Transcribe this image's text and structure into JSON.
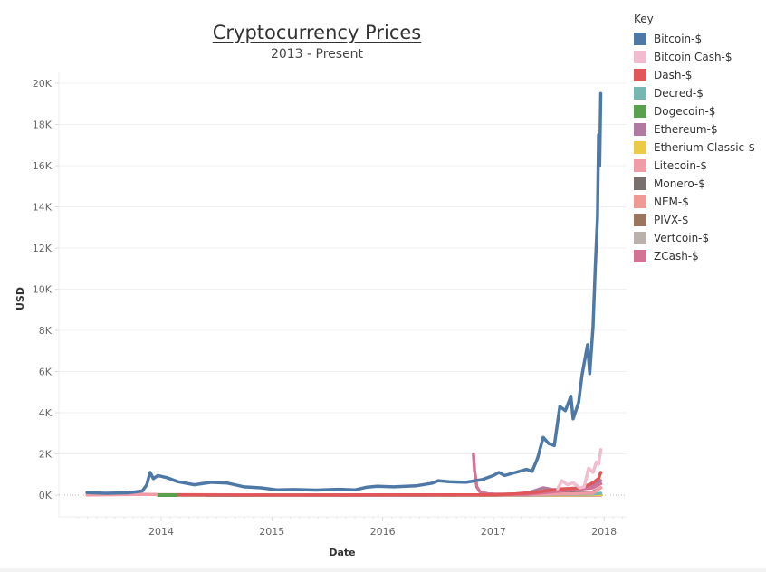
{
  "header": {
    "title": "Cryptocurrency Prices",
    "subtitle": "2013 - Present"
  },
  "legend": {
    "title": "Key",
    "items": [
      {
        "label": "Bitcoin-$",
        "color": "#4e79a7"
      },
      {
        "label": "Bitcoin Cash-$",
        "color": "#f1bbd0"
      },
      {
        "label": "Dash-$",
        "color": "#e15759"
      },
      {
        "label": "Decred-$",
        "color": "#76b7b2"
      },
      {
        "label": "Dogecoin-$",
        "color": "#59a14f"
      },
      {
        "label": "Ethereum-$",
        "color": "#b07aa1"
      },
      {
        "label": "Etherium Classic-$",
        "color": "#edc948"
      },
      {
        "label": "Litecoin-$",
        "color": "#f19ba7"
      },
      {
        "label": "Monero-$",
        "color": "#79706e"
      },
      {
        "label": "NEM-$",
        "color": "#f09a96"
      },
      {
        "label": "PIVX-$",
        "color": "#9c755f"
      },
      {
        "label": "Vertcoin-$",
        "color": "#bab0ac"
      },
      {
        "label": "ZCash-$",
        "color": "#d37295"
      }
    ]
  },
  "chart_data": {
    "type": "line",
    "title": "Cryptocurrency Prices",
    "subtitle": "2013 - Present",
    "xlabel": "Date",
    "ylabel": "USD",
    "x_ticks": [
      "2014",
      "2015",
      "2016",
      "2017",
      "2018"
    ],
    "x_tick_values": [
      2014,
      2015,
      2016,
      2017,
      2018
    ],
    "xlim": [
      2013.1,
      2018.2
    ],
    "y_ticks": [
      "0K",
      "2K",
      "4K",
      "6K",
      "8K",
      "10K",
      "12K",
      "14K",
      "16K",
      "18K",
      "20K"
    ],
    "y_tick_values": [
      0,
      2000,
      4000,
      6000,
      8000,
      10000,
      12000,
      14000,
      16000,
      18000,
      20000
    ],
    "ylim": [
      -1000,
      21000
    ],
    "grid": true,
    "legend_position": "right",
    "series": [
      {
        "name": "Bitcoin-$",
        "color": "#4e79a7",
        "points": [
          [
            2013.33,
            120
          ],
          [
            2013.5,
            90
          ],
          [
            2013.7,
            110
          ],
          [
            2013.83,
            200
          ],
          [
            2013.87,
            500
          ],
          [
            2013.9,
            1100
          ],
          [
            2013.93,
            800
          ],
          [
            2013.97,
            950
          ],
          [
            2014.05,
            850
          ],
          [
            2014.15,
            650
          ],
          [
            2014.3,
            500
          ],
          [
            2014.45,
            620
          ],
          [
            2014.6,
            580
          ],
          [
            2014.75,
            400
          ],
          [
            2014.9,
            350
          ],
          [
            2015.05,
            250
          ],
          [
            2015.2,
            270
          ],
          [
            2015.4,
            240
          ],
          [
            2015.6,
            280
          ],
          [
            2015.75,
            250
          ],
          [
            2015.85,
            380
          ],
          [
            2015.95,
            430
          ],
          [
            2016.1,
            400
          ],
          [
            2016.3,
            450
          ],
          [
            2016.45,
            580
          ],
          [
            2016.5,
            700
          ],
          [
            2016.6,
            650
          ],
          [
            2016.75,
            620
          ],
          [
            2016.9,
            750
          ],
          [
            2017.0,
            950
          ],
          [
            2017.05,
            1100
          ],
          [
            2017.1,
            950
          ],
          [
            2017.2,
            1100
          ],
          [
            2017.3,
            1250
          ],
          [
            2017.35,
            1150
          ],
          [
            2017.4,
            1800
          ],
          [
            2017.45,
            2800
          ],
          [
            2017.5,
            2500
          ],
          [
            2017.55,
            2400
          ],
          [
            2017.6,
            4300
          ],
          [
            2017.65,
            4100
          ],
          [
            2017.7,
            4800
          ],
          [
            2017.72,
            3700
          ],
          [
            2017.77,
            4500
          ],
          [
            2017.8,
            5800
          ],
          [
            2017.85,
            7300
          ],
          [
            2017.87,
            5900
          ],
          [
            2017.9,
            8200
          ],
          [
            2017.92,
            11000
          ],
          [
            2017.94,
            13500
          ],
          [
            2017.95,
            17500
          ],
          [
            2017.96,
            16000
          ],
          [
            2017.97,
            19500
          ]
        ]
      },
      {
        "name": "Bitcoin Cash-$",
        "color": "#f1bbd0",
        "points": [
          [
            2017.58,
            300
          ],
          [
            2017.62,
            700
          ],
          [
            2017.67,
            500
          ],
          [
            2017.72,
            600
          ],
          [
            2017.78,
            350
          ],
          [
            2017.82,
            400
          ],
          [
            2017.86,
            1300
          ],
          [
            2017.9,
            1100
          ],
          [
            2017.93,
            1600
          ],
          [
            2017.95,
            1500
          ],
          [
            2017.97,
            2200
          ]
        ]
      },
      {
        "name": "Dash-$",
        "color": "#e15759",
        "points": [
          [
            2014.15,
            10
          ],
          [
            2015.0,
            5
          ],
          [
            2016.0,
            8
          ],
          [
            2017.0,
            12
          ],
          [
            2017.2,
            60
          ],
          [
            2017.4,
            150
          ],
          [
            2017.6,
            300
          ],
          [
            2017.8,
            350
          ],
          [
            2017.9,
            600
          ],
          [
            2017.95,
            800
          ],
          [
            2017.97,
            1100
          ]
        ]
      },
      {
        "name": "Decred-$",
        "color": "#76b7b2",
        "points": [
          [
            2016.1,
            1
          ],
          [
            2017.0,
            2
          ],
          [
            2017.4,
            20
          ],
          [
            2017.7,
            40
          ],
          [
            2017.9,
            60
          ],
          [
            2017.97,
            90
          ]
        ]
      },
      {
        "name": "Dogecoin-$",
        "color": "#59a14f",
        "points": [
          [
            2013.97,
            0
          ],
          [
            2014.15,
            0
          ],
          [
            2017.97,
            0
          ]
        ]
      },
      {
        "name": "Ethereum-$",
        "color": "#b07aa1",
        "points": [
          [
            2015.6,
            1
          ],
          [
            2016.0,
            1
          ],
          [
            2016.5,
            12
          ],
          [
            2017.0,
            8
          ],
          [
            2017.3,
            80
          ],
          [
            2017.45,
            350
          ],
          [
            2017.55,
            250
          ],
          [
            2017.7,
            300
          ],
          [
            2017.8,
            300
          ],
          [
            2017.9,
            450
          ],
          [
            2017.97,
            700
          ]
        ]
      },
      {
        "name": "Etherium Classic-$",
        "color": "#edc948",
        "points": [
          [
            2016.55,
            1
          ],
          [
            2017.0,
            1
          ],
          [
            2017.4,
            15
          ],
          [
            2017.7,
            15
          ],
          [
            2017.97,
            30
          ]
        ]
      },
      {
        "name": "Litecoin-$",
        "color": "#f19ba7",
        "points": [
          [
            2013.33,
            4
          ],
          [
            2013.85,
            40
          ],
          [
            2014.0,
            20
          ],
          [
            2015.0,
            3
          ],
          [
            2016.0,
            4
          ],
          [
            2017.0,
            4
          ],
          [
            2017.4,
            30
          ],
          [
            2017.7,
            60
          ],
          [
            2017.9,
            100
          ],
          [
            2017.95,
            300
          ],
          [
            2017.97,
            350
          ]
        ]
      },
      {
        "name": "Monero-$",
        "color": "#79706e",
        "points": [
          [
            2014.4,
            1
          ],
          [
            2016.0,
            1
          ],
          [
            2017.0,
            14
          ],
          [
            2017.4,
            50
          ],
          [
            2017.7,
            100
          ],
          [
            2017.9,
            150
          ],
          [
            2017.97,
            350
          ]
        ]
      },
      {
        "name": "NEM-$",
        "color": "#f09a96",
        "points": [
          [
            2015.3,
            0
          ],
          [
            2017.0,
            0
          ],
          [
            2017.97,
            1
          ]
        ]
      },
      {
        "name": "PIVX-$",
        "color": "#9c755f",
        "points": [
          [
            2016.2,
            0
          ],
          [
            2017.0,
            0
          ],
          [
            2017.97,
            5
          ]
        ]
      },
      {
        "name": "Vertcoin-$",
        "color": "#bab0ac",
        "points": [
          [
            2014.1,
            0
          ],
          [
            2017.0,
            0
          ],
          [
            2017.97,
            5
          ]
        ]
      },
      {
        "name": "ZCash-$",
        "color": "#d37295",
        "points": [
          [
            2016.82,
            2000
          ],
          [
            2016.83,
            1200
          ],
          [
            2016.85,
            400
          ],
          [
            2016.88,
            150
          ],
          [
            2016.95,
            60
          ],
          [
            2017.0,
            50
          ],
          [
            2017.3,
            40
          ],
          [
            2017.6,
            200
          ],
          [
            2017.8,
            300
          ],
          [
            2017.9,
            350
          ],
          [
            2017.97,
            550
          ]
        ]
      }
    ]
  }
}
